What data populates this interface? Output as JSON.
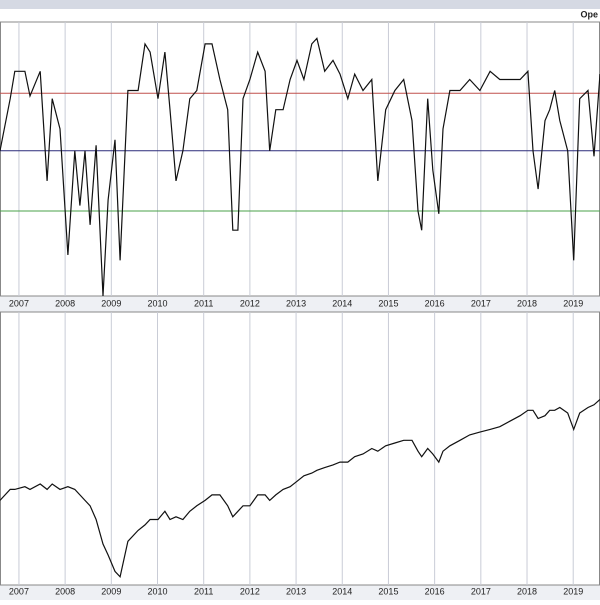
{
  "chart_data": [
    {
      "type": "line",
      "title": "Ope",
      "x": [
        2006.59,
        2006.81,
        2006.91,
        2007.13,
        2007.24,
        2007.46,
        2007.61,
        2007.72,
        2007.89,
        2008.06,
        2008.21,
        2008.32,
        2008.43,
        2008.54,
        2008.67,
        2008.82,
        2008.93,
        2009.08,
        2009.19,
        2009.36,
        2009.58,
        2009.73,
        2009.84,
        2010.01,
        2010.16,
        2010.27,
        2010.4,
        2010.55,
        2010.7,
        2010.85,
        2011.03,
        2011.18,
        2011.35,
        2011.52,
        2011.63,
        2011.74,
        2011.85,
        2012.0,
        2012.17,
        2012.33,
        2012.43,
        2012.56,
        2012.72,
        2012.87,
        2013.02,
        2013.17,
        2013.34,
        2013.45,
        2013.62,
        2013.8,
        2013.95,
        2014.12,
        2014.27,
        2014.45,
        2014.64,
        2014.77,
        2014.94,
        2015.14,
        2015.33,
        2015.51,
        2015.64,
        2015.72,
        2015.85,
        2015.96,
        2016.09,
        2016.18,
        2016.33,
        2016.55,
        2016.76,
        2016.98,
        2017.2,
        2017.41,
        2017.63,
        2017.85,
        2018.02,
        2018.13,
        2018.24,
        2018.39,
        2018.49,
        2018.6,
        2018.71,
        2018.88,
        2019.01,
        2019.14,
        2019.32,
        2019.45,
        2019.58
      ],
      "series": [
        {
          "color": "#111111",
          "values": [
            53,
            72,
            82,
            82,
            73,
            82,
            42,
            72,
            61,
            15,
            53,
            33,
            53,
            26,
            55,
            0,
            35,
            57,
            13,
            75,
            75,
            92,
            89,
            72,
            89,
            68,
            42,
            53,
            72,
            75,
            92,
            92,
            79,
            68,
            24,
            24,
            72,
            79,
            89,
            82,
            53,
            68,
            68,
            79,
            86,
            79,
            92,
            94,
            82,
            86,
            81,
            72,
            81,
            75,
            79,
            42,
            68,
            75,
            79,
            64,
            31,
            24,
            72,
            46,
            30,
            61,
            75,
            75,
            79,
            75,
            82,
            79,
            79,
            79,
            82,
            53,
            39,
            64,
            68,
            75,
            64,
            53,
            13,
            72,
            75,
            51,
            81
          ]
        }
      ],
      "hlines": [
        {
          "value": 74,
          "color": "#c0504d"
        },
        {
          "value": 53,
          "color": "#2c2c7a"
        },
        {
          "value": 31,
          "color": "#4aa24a"
        }
      ],
      "xlim": [
        2006.59,
        2019.58
      ],
      "xticks": [
        2007,
        2008,
        2009,
        2010,
        2011,
        2012,
        2013,
        2014,
        2015,
        2016,
        2017,
        2018,
        2019
      ],
      "ylim": [
        0,
        100
      ],
      "grid": true
    },
    {
      "type": "line",
      "x": [
        2006.59,
        2006.81,
        2006.91,
        2007.13,
        2007.24,
        2007.46,
        2007.61,
        2007.72,
        2007.89,
        2008.06,
        2008.21,
        2008.32,
        2008.43,
        2008.54,
        2008.67,
        2008.82,
        2008.93,
        2009.08,
        2009.19,
        2009.36,
        2009.58,
        2009.73,
        2009.84,
        2010.01,
        2010.16,
        2010.27,
        2010.4,
        2010.55,
        2010.7,
        2010.85,
        2011.03,
        2011.18,
        2011.35,
        2011.52,
        2011.63,
        2011.74,
        2011.85,
        2012.0,
        2012.17,
        2012.33,
        2012.43,
        2012.56,
        2012.72,
        2012.87,
        2013.02,
        2013.17,
        2013.34,
        2013.45,
        2013.62,
        2013.8,
        2013.95,
        2014.12,
        2014.27,
        2014.45,
        2014.64,
        2014.77,
        2014.94,
        2015.14,
        2015.33,
        2015.51,
        2015.64,
        2015.72,
        2015.85,
        2015.96,
        2016.09,
        2016.18,
        2016.33,
        2016.55,
        2016.76,
        2016.98,
        2017.2,
        2017.41,
        2017.63,
        2017.85,
        2018.02,
        2018.13,
        2018.24,
        2018.39,
        2018.49,
        2018.6,
        2018.71,
        2018.88,
        2019.01,
        2019.14,
        2019.32,
        2019.45,
        2019.58
      ],
      "series": [
        {
          "color": "#111111",
          "values": [
            31,
            35,
            35,
            36,
            35,
            37,
            35,
            37,
            35,
            36,
            35,
            33,
            31,
            29,
            24,
            15,
            11,
            5,
            3,
            16,
            20,
            22,
            24,
            24,
            27,
            24,
            25,
            24,
            27,
            29,
            31,
            33,
            33,
            29,
            25,
            27,
            29,
            29,
            33,
            33,
            31,
            33,
            35,
            36,
            38,
            40,
            41,
            42,
            43,
            44,
            45,
            45,
            47,
            48,
            50,
            49,
            51,
            52,
            53,
            53,
            49,
            47,
            50,
            48,
            45,
            49,
            51,
            53,
            55,
            56,
            57,
            58,
            60,
            62,
            64,
            64,
            61,
            62,
            64,
            64,
            65,
            63,
            57,
            63,
            65,
            66,
            68
          ]
        }
      ],
      "xlim": [
        2006.59,
        2019.58
      ],
      "xticks": [
        2007,
        2008,
        2009,
        2010,
        2011,
        2012,
        2013,
        2014,
        2015,
        2016,
        2017,
        2018,
        2019
      ],
      "ylim": [
        0,
        100
      ],
      "grid": true
    }
  ]
}
